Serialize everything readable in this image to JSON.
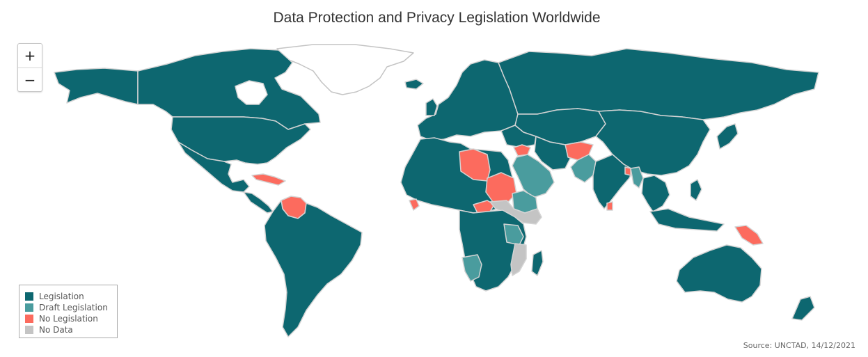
{
  "title": "Data Protection and Privacy Legislation Worldwide",
  "zoom": {
    "in_label": "+",
    "out_label": "−"
  },
  "legend": [
    {
      "label": "Legislation",
      "color": "#0d6770"
    },
    {
      "label": "Draft Legislation",
      "color": "#4a9c9e"
    },
    {
      "label": "No Legislation",
      "color": "#fc6b5e"
    },
    {
      "label": "No Data",
      "color": "#c4c4c4"
    }
  ],
  "source": "Source: UNCTAD, 14/12/2021",
  "colors": {
    "legislation": "#0d6770",
    "draft": "#4a9c9e",
    "none": "#fc6b5e",
    "nodata": "#c4c4c4",
    "border": "#d4d4d4",
    "background": "#ffffff"
  }
}
